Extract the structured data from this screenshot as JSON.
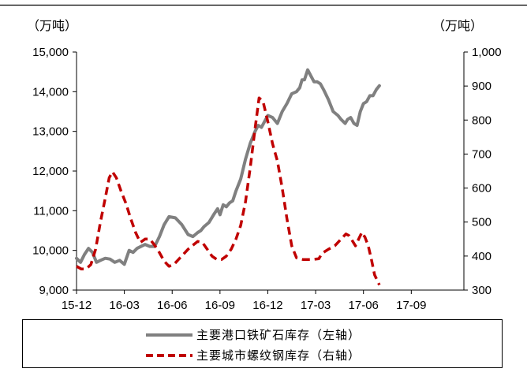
{
  "chart_data": {
    "type": "line",
    "left_unit": "（万吨）",
    "right_unit": "（万吨）",
    "x_ticks": [
      "15-12",
      "16-03",
      "16-06",
      "16-09",
      "16-12",
      "17-03",
      "17-06",
      "17-09"
    ],
    "left_axis": {
      "min": 9000,
      "max": 15000,
      "ticks": [
        "9,000",
        "10,000",
        "11,000",
        "12,000",
        "13,000",
        "14,000",
        "15,000"
      ]
    },
    "right_axis": {
      "min": 300,
      "max": 1000,
      "ticks": [
        "300",
        "400",
        "500",
        "600",
        "700",
        "800",
        "900",
        "1,000"
      ]
    },
    "x_range": [
      0,
      24.3
    ],
    "grid": false,
    "legend_position": "bottom",
    "colors": {
      "iron_ore": "#808080",
      "rebar": "#c00000"
    },
    "series": [
      {
        "name": "主要港口铁矿石库存（左轴）",
        "axis": "left",
        "style": "solid",
        "points": [
          [
            0.0,
            9800
          ],
          [
            0.25,
            9700
          ],
          [
            0.5,
            9900
          ],
          [
            0.75,
            10050
          ],
          [
            1.0,
            9950
          ],
          [
            1.25,
            9700
          ],
          [
            1.5,
            9750
          ],
          [
            1.8,
            9800
          ],
          [
            2.1,
            9780
          ],
          [
            2.4,
            9700
          ],
          [
            2.7,
            9750
          ],
          [
            3.0,
            9650
          ],
          [
            3.3,
            10000
          ],
          [
            3.55,
            9950
          ],
          [
            3.8,
            10050
          ],
          [
            4.05,
            10100
          ],
          [
            4.3,
            10150
          ],
          [
            4.6,
            10100
          ],
          [
            4.9,
            10100
          ],
          [
            5.2,
            10350
          ],
          [
            5.5,
            10650
          ],
          [
            5.8,
            10850
          ],
          [
            6.2,
            10820
          ],
          [
            6.6,
            10650
          ],
          [
            7.0,
            10400
          ],
          [
            7.3,
            10350
          ],
          [
            7.6,
            10450
          ],
          [
            7.8,
            10500
          ],
          [
            8.0,
            10600
          ],
          [
            8.3,
            10700
          ],
          [
            8.6,
            10900
          ],
          [
            8.85,
            11050
          ],
          [
            9.0,
            10900
          ],
          [
            9.2,
            11150
          ],
          [
            9.4,
            11100
          ],
          [
            9.6,
            11200
          ],
          [
            9.8,
            11250
          ],
          [
            10.0,
            11500
          ],
          [
            10.3,
            11800
          ],
          [
            10.6,
            12300
          ],
          [
            10.9,
            12700
          ],
          [
            11.2,
            13000
          ],
          [
            11.4,
            13150
          ],
          [
            11.6,
            13100
          ],
          [
            11.8,
            13250
          ],
          [
            12.0,
            13400
          ],
          [
            12.3,
            13350
          ],
          [
            12.6,
            13200
          ],
          [
            12.9,
            13500
          ],
          [
            13.2,
            13700
          ],
          [
            13.5,
            13950
          ],
          [
            13.8,
            14000
          ],
          [
            14.0,
            14100
          ],
          [
            14.15,
            14300
          ],
          [
            14.3,
            14300
          ],
          [
            14.5,
            14550
          ],
          [
            14.7,
            14400
          ],
          [
            14.9,
            14250
          ],
          [
            15.1,
            14250
          ],
          [
            15.3,
            14200
          ],
          [
            15.5,
            14050
          ],
          [
            15.8,
            13800
          ],
          [
            16.1,
            13500
          ],
          [
            16.4,
            13400
          ],
          [
            16.6,
            13300
          ],
          [
            16.85,
            13200
          ],
          [
            17.0,
            13300
          ],
          [
            17.2,
            13350
          ],
          [
            17.4,
            13200
          ],
          [
            17.6,
            13150
          ],
          [
            17.8,
            13500
          ],
          [
            18.0,
            13700
          ],
          [
            18.2,
            13750
          ],
          [
            18.4,
            13900
          ],
          [
            18.6,
            13900
          ],
          [
            18.8,
            14050
          ],
          [
            19.0,
            14150
          ]
        ]
      },
      {
        "name": "主要城市螺纹钢库存（右轴）",
        "axis": "right",
        "style": "dashed",
        "points": [
          [
            0.0,
            370
          ],
          [
            0.3,
            362
          ],
          [
            0.6,
            362
          ],
          [
            0.9,
            375
          ],
          [
            1.2,
            420
          ],
          [
            1.5,
            500
          ],
          [
            1.8,
            570
          ],
          [
            2.05,
            630
          ],
          [
            2.25,
            648
          ],
          [
            2.5,
            630
          ],
          [
            2.8,
            590
          ],
          [
            3.1,
            555
          ],
          [
            3.4,
            510
          ],
          [
            3.7,
            470
          ],
          [
            4.0,
            440
          ],
          [
            4.3,
            450
          ],
          [
            4.6,
            450
          ],
          [
            4.9,
            432
          ],
          [
            5.2,
            410
          ],
          [
            5.5,
            385
          ],
          [
            5.8,
            370
          ],
          [
            6.1,
            375
          ],
          [
            6.4,
            390
          ],
          [
            6.7,
            405
          ],
          [
            7.0,
            420
          ],
          [
            7.3,
            432
          ],
          [
            7.6,
            443
          ],
          [
            7.9,
            440
          ],
          [
            8.2,
            420
          ],
          [
            8.5,
            400
          ],
          [
            8.8,
            390
          ],
          [
            9.1,
            390
          ],
          [
            9.4,
            400
          ],
          [
            9.7,
            420
          ],
          [
            10.0,
            450
          ],
          [
            10.3,
            490
          ],
          [
            10.6,
            560
          ],
          [
            10.9,
            660
          ],
          [
            11.2,
            775
          ],
          [
            11.45,
            865
          ],
          [
            11.7,
            855
          ],
          [
            12.0,
            795
          ],
          [
            12.3,
            730
          ],
          [
            12.6,
            680
          ],
          [
            12.9,
            600
          ],
          [
            13.2,
            510
          ],
          [
            13.5,
            430
          ],
          [
            13.8,
            395
          ],
          [
            14.2,
            390
          ],
          [
            14.8,
            390
          ],
          [
            15.2,
            392
          ],
          [
            15.4,
            408
          ],
          [
            15.8,
            420
          ],
          [
            16.2,
            430
          ],
          [
            16.6,
            450
          ],
          [
            16.9,
            465
          ],
          [
            17.1,
            460
          ],
          [
            17.3,
            445
          ],
          [
            17.5,
            430
          ],
          [
            17.7,
            450
          ],
          [
            17.9,
            470
          ],
          [
            18.1,
            455
          ],
          [
            18.3,
            430
          ],
          [
            18.5,
            390
          ],
          [
            18.7,
            345
          ],
          [
            19.0,
            315
          ]
        ]
      }
    ]
  }
}
